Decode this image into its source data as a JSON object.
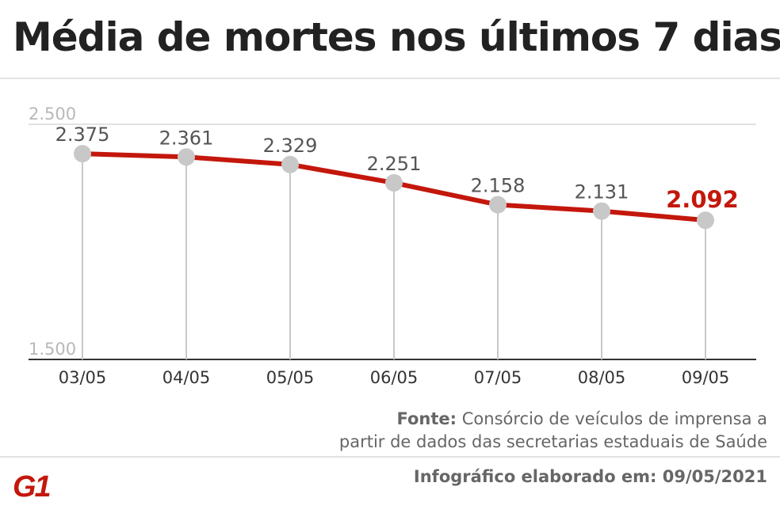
{
  "title": "Média de mortes nos últimos 7 dias",
  "source": {
    "label": "Fonte:",
    "line1": "Consórcio de veículos de imprensa a",
    "line2": "partir de dados das secretarias estaduais de Saúde"
  },
  "footer": {
    "date_text": "Infográfico elaborado em: 09/05/2021",
    "logo_text": "G1"
  },
  "colors": {
    "line": "#c4170c",
    "point": "#c8c8c8",
    "highlight": "#c4170c",
    "label": "#555555",
    "axis": "#333333",
    "grid": "#d8d8d8"
  },
  "chart_data": {
    "type": "line",
    "categories": [
      "03/05",
      "04/05",
      "05/05",
      "06/05",
      "07/05",
      "08/05",
      "09/05"
    ],
    "values": [
      2375,
      2361,
      2329,
      2251,
      2158,
      2131,
      2092
    ],
    "value_labels": [
      "2.375",
      "2.361",
      "2.329",
      "2.251",
      "2.158",
      "2.131",
      "2.092"
    ],
    "ylim": [
      1500,
      2500
    ],
    "yticks": [
      1500,
      2500
    ],
    "ytick_labels": [
      "1.500",
      "2.500"
    ],
    "highlight_last": true,
    "grid": true
  }
}
